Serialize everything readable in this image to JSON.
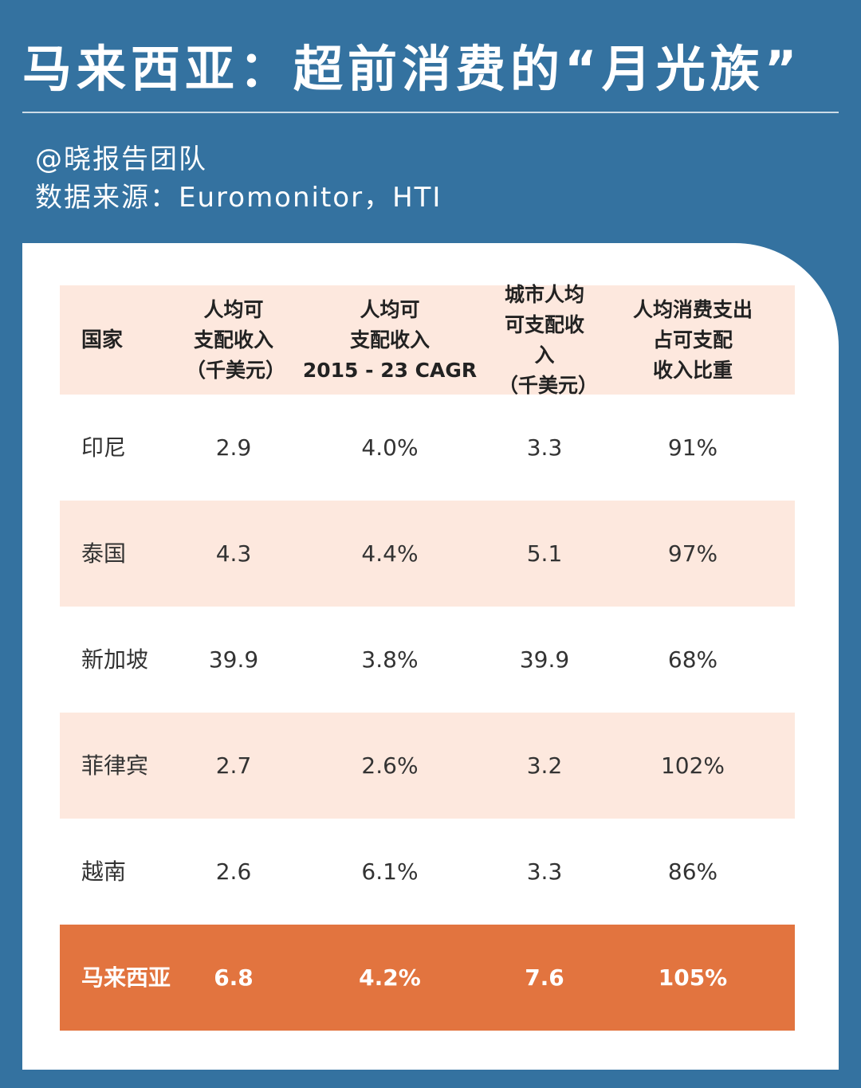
{
  "title": "马来西亚：超前消费的“月光族”",
  "author": "@晓报告团队",
  "source": "数据来源：Euromonitor，HTI",
  "colors": {
    "background": "#3472a0",
    "header_bg": "#fde8de",
    "stripe_bg": "#fde8de",
    "highlight_bg": "#e2743f"
  },
  "chart_data": {
    "type": "table",
    "columns": [
      "国家",
      "人均可\n支配收入\n（千美元）",
      "人均可\n支配收入\n2015 - 23 CAGR",
      "城市人均\n可支配收入\n（千美元）",
      "人均消费支出\n占可支配\n收入比重"
    ],
    "rows": [
      [
        "印尼",
        "2.9",
        "4.0%",
        "3.3",
        "91%"
      ],
      [
        "泰国",
        "4.3",
        "4.4%",
        "5.1",
        "97%"
      ],
      [
        "新加坡",
        "39.9",
        "3.8%",
        "39.9",
        "68%"
      ],
      [
        "菲律宾",
        "2.7",
        "2.6%",
        "3.2",
        "102%"
      ],
      [
        "越南",
        "2.6",
        "6.1%",
        "3.3",
        "86%"
      ],
      [
        "马来西亚",
        "6.8",
        "4.2%",
        "7.6",
        "105%"
      ]
    ],
    "highlight_row": 5
  }
}
